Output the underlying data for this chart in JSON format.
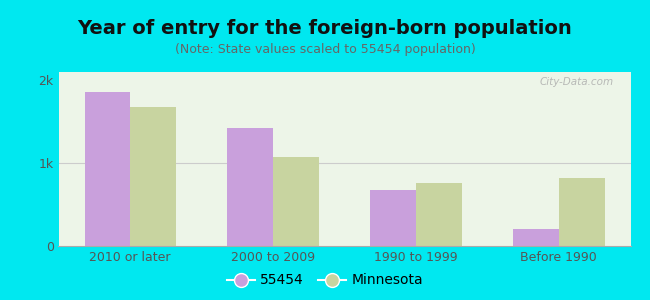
{
  "title": "Year of entry for the foreign-born population",
  "subtitle": "(Note: State values scaled to 55454 population)",
  "categories": [
    "2010 or later",
    "2000 to 2009",
    "1990 to 1999",
    "Before 1990"
  ],
  "values_55454": [
    1860,
    1430,
    680,
    210
  ],
  "values_minnesota": [
    1680,
    1080,
    760,
    820
  ],
  "color_55454": "#c9a0dc",
  "color_minnesota": "#c8d4a0",
  "background_outer": "#00e8f0",
  "background_inner": "#edf5e8",
  "ylim": [
    0,
    2100
  ],
  "yticks": [
    0,
    1000,
    2000
  ],
  "ytick_labels": [
    "0",
    "1k",
    "2k"
  ],
  "legend_label_55454": "55454",
  "legend_label_minnesota": "Minnesota",
  "bar_width": 0.32,
  "title_fontsize": 14,
  "subtitle_fontsize": 9,
  "watermark": "City-Data.com"
}
